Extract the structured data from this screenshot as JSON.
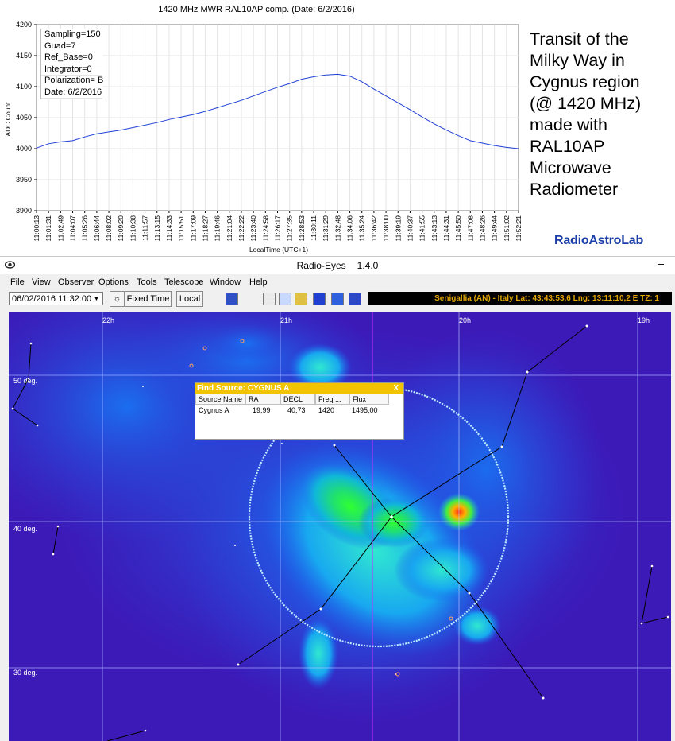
{
  "chart_data": {
    "type": "line",
    "title": "1420 MHz MWR RAL10AP  comp. (Date: 6/2/2016)",
    "xlabel": "LocalTime (UTC+1)",
    "ylabel": "ADC Count",
    "ylim": [
      3900,
      4200
    ],
    "yticks": [
      "4200",
      "4150",
      "4100",
      "4050",
      "4000",
      "3950",
      "3900"
    ],
    "grid": true,
    "line_color": "#1f3fd6",
    "xticks": [
      "11:00:13",
      "11:01:31",
      "11:02:49",
      "11:04:07",
      "11:05:26",
      "11:06:44",
      "11:08:02",
      "11:09:20",
      "11:10:38",
      "11:11:57",
      "11:13:15",
      "11:14:33",
      "11:15:51",
      "11:17:09",
      "11:18:27",
      "11:19:46",
      "11:21:04",
      "11:22:22",
      "11:23:40",
      "11:24:58",
      "11:26:17",
      "11:27:35",
      "11:28:53",
      "11:30:11",
      "11:31:29",
      "11:32:48",
      "11:34:06",
      "11:35:24",
      "11:36:42",
      "11:38:00",
      "11:39:19",
      "11:40:37",
      "11:41:55",
      "11:43:13",
      "11:44:31",
      "11:45:50",
      "11:47:08",
      "11:48:26",
      "11:49:44",
      "11:51:02",
      "11:52:21"
    ],
    "values": [
      4001,
      4008,
      4011,
      4013,
      4019,
      4024,
      4027,
      4030,
      4034,
      4038,
      4042,
      4047,
      4051,
      4055,
      4060,
      4066,
      4072,
      4078,
      4085,
      4092,
      4099,
      4105,
      4112,
      4116,
      4119,
      4120,
      4117,
      4108,
      4096,
      4085,
      4074,
      4063,
      4051,
      4040,
      4030,
      4021,
      4013,
      4009,
      4005,
      4002,
      4000
    ]
  },
  "params": [
    "Sampling=150",
    "Guad=7",
    "Ref_Base=0",
    "Integrator=0",
    "Polarization= B",
    "Date: 6/2/2016"
  ],
  "caption": "Transit of the\nMilky Way in\nCygnus region\n(@ 1420 MHz)\nmade with\nRAL10AP\nMicrowave\nRadiometer",
  "brand": {
    "part1": "RadioAstro",
    "part2": "Lab"
  },
  "app": {
    "title": "Radio-Eyes",
    "version": "1.4.0",
    "minimize": "–",
    "menu": [
      "File",
      "View",
      "Observer",
      "Options",
      "Tools",
      "Telescope",
      "Window",
      "Help"
    ],
    "datetime": "06/02/2016  11:32:00",
    "fixed_time_label": "Fixed Time",
    "local_label": "Local",
    "location_text": "Senigallia (AN) - Italy   Lat: 43:43:53,6   Lng: 13:11:10,2 E   TZ:  1",
    "ra_labels": [
      "22h",
      "21h",
      "20h",
      "19h"
    ],
    "dec_labels": [
      "50 deg.",
      "40 deg.",
      "30 deg."
    ]
  },
  "find_source": {
    "title": "Find Source: CYGNUS A",
    "close": "X",
    "headers": [
      "Source Name",
      "RA",
      "DECL",
      "Freq ...",
      "Flux"
    ],
    "row": [
      "Cygnus A",
      "19,99",
      "40,73",
      "1420",
      "1495,00"
    ]
  },
  "colors": {
    "sky_background": "#3c1ab8",
    "grid_line": "#b9c7ff",
    "meridian": "#c030ff",
    "find_title": "#f2c300"
  }
}
